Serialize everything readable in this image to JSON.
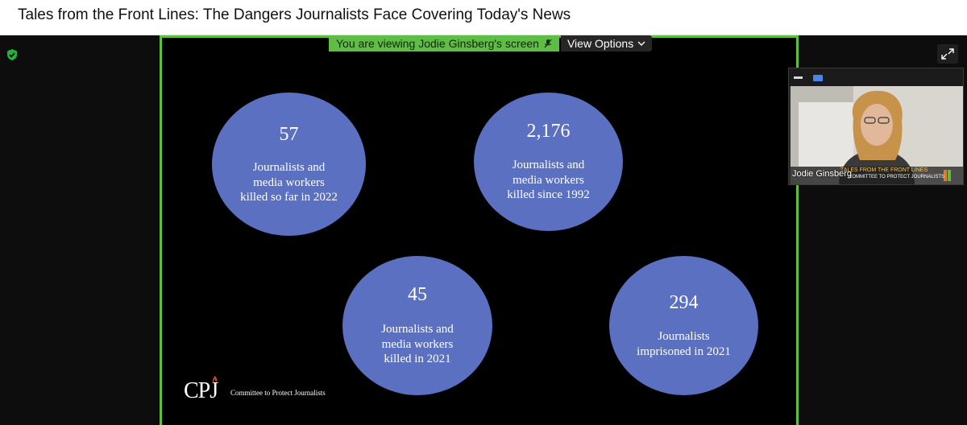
{
  "window": {
    "title": "Tales from the Front Lines: The Dangers Journalists Face Covering Today's News"
  },
  "share_banner": {
    "viewing_text": "You are viewing Jodie Ginsberg's screen",
    "view_options_label": "View Options"
  },
  "slide": {
    "stats": [
      {
        "number": "57",
        "lines": [
          "Journalists and",
          "media workers",
          "killed so far in 2022"
        ]
      },
      {
        "number": "2,176",
        "lines": [
          "Journalists and",
          "media workers",
          "killed since 1992"
        ]
      },
      {
        "number": "45",
        "lines": [
          "Journalists and",
          "media workers",
          "killed in 2021"
        ]
      },
      {
        "number": "294",
        "lines": [
          "Journalists",
          "imprisoned in 2021"
        ]
      }
    ],
    "logo_text": "CPJ",
    "org_name": "Committee to Protect Journalists"
  },
  "video": {
    "participant_name": "Jodie Ginsberg",
    "lower_third_title": "TALES FROM THE FRONT LINES",
    "lower_third_subtitle": "COMMITTEE TO PROTECT JOURNALISTS"
  },
  "colors": {
    "share_border": "#5fbd45",
    "circle_fill": "#5b70c0",
    "encryption_shield": "#22b33a"
  },
  "icons": {
    "security": "shield-check-icon",
    "expand": "expand-icon",
    "chevron": "chevron-down-icon",
    "minimize": "minimize-icon",
    "view": "view-layout-icon"
  }
}
